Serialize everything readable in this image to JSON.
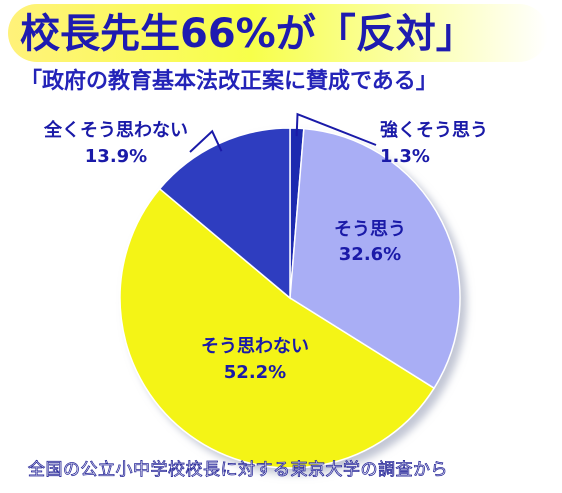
{
  "title": "校長先生66%が「反対」",
  "subtitle": "「政府の教育基本法改正案に賛成である」",
  "footer": "全国の公立小中学校校長に対する東京大学の調査から",
  "chart_data": {
    "type": "pie",
    "title": "校長先生66%が「反対」",
    "subtitle": "「政府の教育基本法改正案に賛成である」",
    "slices": [
      {
        "label": "強くそう思う",
        "value": 1.3,
        "value_label": "1.3%",
        "color": "#1c2ab0"
      },
      {
        "label": "そう思う",
        "value": 32.6,
        "value_label": "32.6%",
        "color": "#a9aef5"
      },
      {
        "label": "そう思わない",
        "value": 52.2,
        "value_label": "52.2%",
        "color": "#f4f418"
      },
      {
        "label": "全くそう思わない",
        "value": 13.9,
        "value_label": "13.9%",
        "color": "#2f3ec0"
      }
    ],
    "start": "12 o'clock",
    "direction": "clockwise"
  }
}
